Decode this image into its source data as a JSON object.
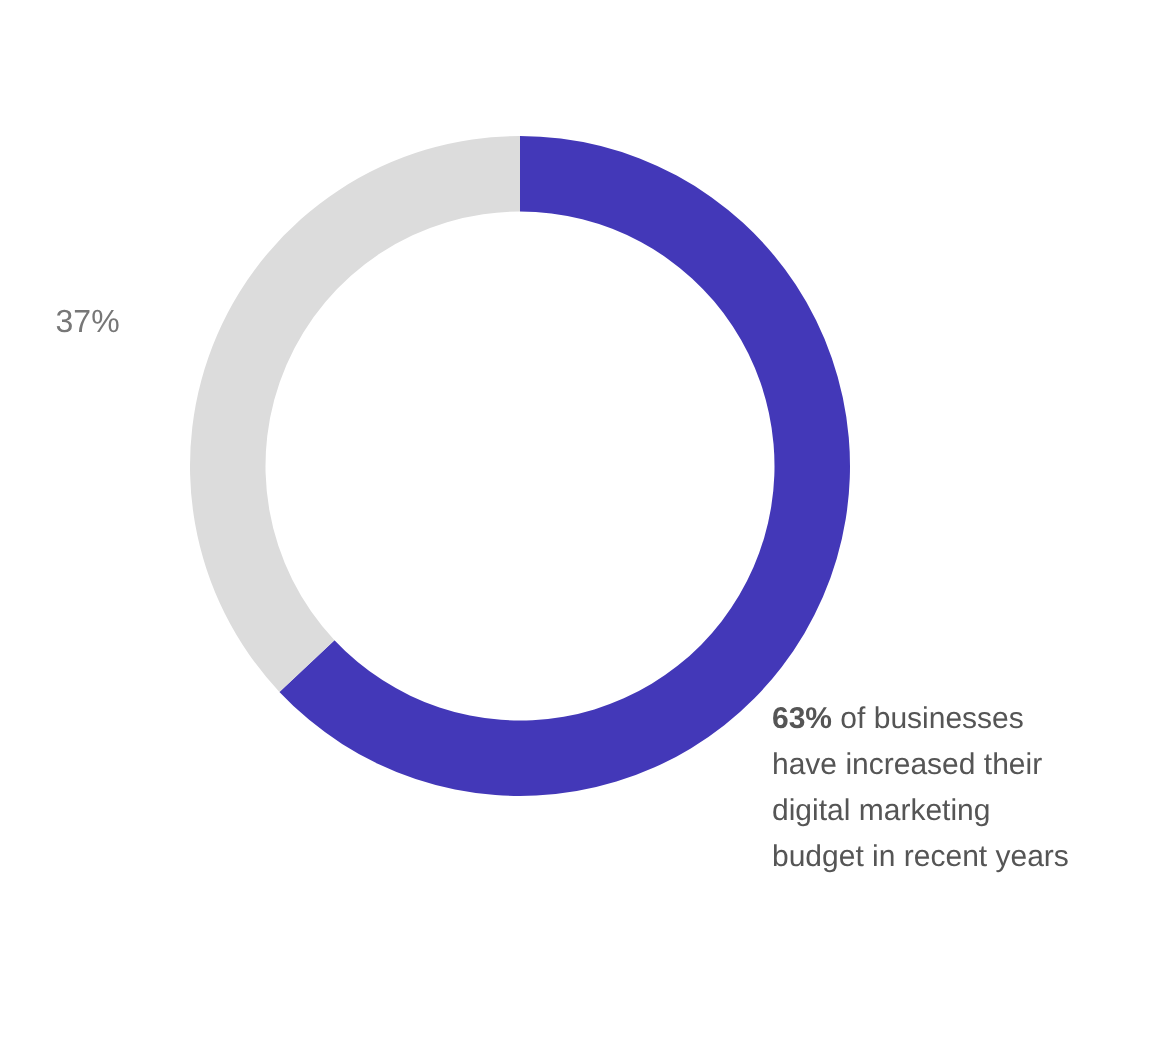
{
  "chart_data": {
    "type": "donut",
    "categories": [
      null,
      null
    ],
    "values": [
      63,
      37
    ],
    "colors": [
      "#4338b8",
      "#dcdcdc"
    ],
    "value_labels": [
      null,
      "37%"
    ],
    "annotations": [
      "63% of businesses have increased their digital marketing budget in recent years"
    ]
  }
}
